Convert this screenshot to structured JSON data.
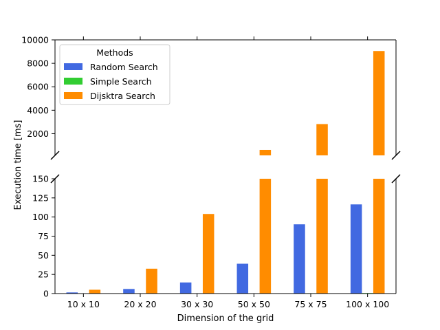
{
  "chart_data": {
    "type": "bar",
    "xlabel": "Dimension of the grid",
    "ylabel": "Execution time [ms]",
    "categories": [
      "10 x 10",
      "20 x 20",
      "30 x 30",
      "50 x 50",
      "75 x 75",
      "100 x 100"
    ],
    "series": [
      {
        "name": "Random Search",
        "color": "#4169e1",
        "values": [
          1.5,
          6,
          14.5,
          39,
          90.5,
          116.5
        ]
      },
      {
        "name": "Simple Search",
        "color": "#32cd32",
        "values": [
          0.05,
          0.1,
          0.2,
          0.3,
          0.5,
          0.7
        ]
      },
      {
        "name": "Dijsktra Search",
        "color": "#ff8c00",
        "values": [
          5,
          32.5,
          104,
          620,
          2820,
          9050
        ]
      }
    ],
    "axes": {
      "upper": {
        "ylim": [
          150,
          10000
        ],
        "ticks": [
          2000,
          4000,
          6000,
          8000,
          10000
        ]
      },
      "lower": {
        "ylim": [
          0,
          150
        ],
        "ticks": [
          0,
          25,
          50,
          75,
          100,
          125,
          150
        ]
      }
    },
    "broken_axis": true,
    "legend": {
      "title": "Methods",
      "placement": "top-left"
    },
    "grid": false
  }
}
